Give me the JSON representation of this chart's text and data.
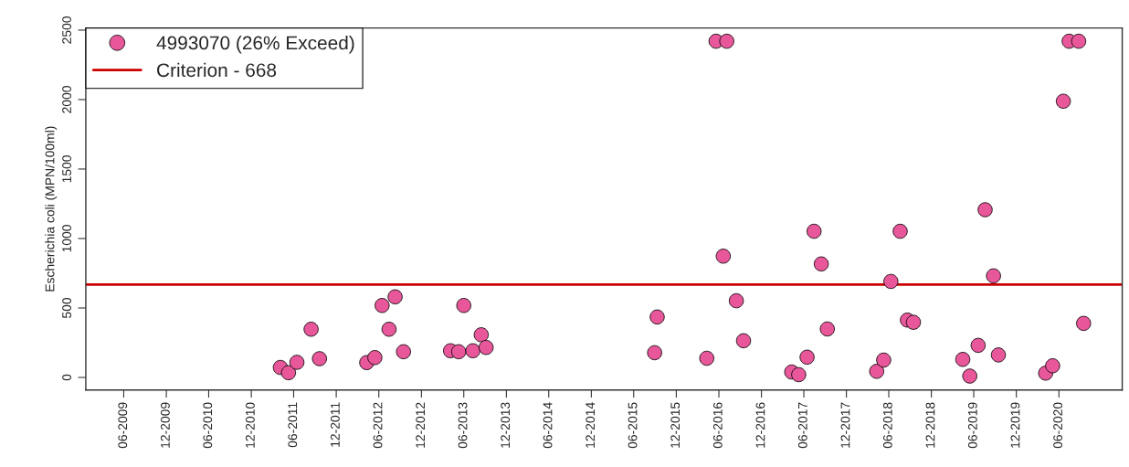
{
  "chart_data": {
    "type": "scatter",
    "ylabel": "Escherichia coli (MPN/100ml)",
    "series": [
      {
        "name": "4993070 (26% Exceed)",
        "color": "#e8579a",
        "x": [
          "2011-04-05",
          "2011-05-10",
          "2011-06-15",
          "2011-08-15",
          "2011-09-20",
          "2012-04-10",
          "2012-05-15",
          "2012-06-15",
          "2012-07-15",
          "2012-08-10",
          "2012-09-15",
          "2013-04-05",
          "2013-05-10",
          "2013-06-01",
          "2013-07-10",
          "2013-08-15",
          "2013-09-05",
          "2015-08-30",
          "2015-09-10",
          "2016-04-10",
          "2016-05-20",
          "2016-06-20",
          "2016-07-05",
          "2016-08-15",
          "2016-09-15",
          "2017-04-10",
          "2017-05-10",
          "2017-06-15",
          "2017-07-15",
          "2017-08-15",
          "2017-09-10",
          "2018-04-10",
          "2018-05-10",
          "2018-06-10",
          "2018-07-20",
          "2018-08-20",
          "2018-09-15",
          "2019-04-15",
          "2019-05-15",
          "2019-06-20",
          "2019-07-20",
          "2019-08-25",
          "2019-09-15",
          "2020-04-05",
          "2020-05-05",
          "2020-06-20",
          "2020-07-15",
          "2020-08-25",
          "2020-09-15"
        ],
        "values": [
          72,
          34,
          109,
          347,
          135,
          107,
          143,
          518,
          347,
          580,
          185,
          192,
          185,
          518,
          192,
          307,
          216,
          178,
          435,
          138,
          2420,
          873,
          2420,
          552,
          264,
          39,
          20,
          146,
          1052,
          817,
          349,
          44,
          125,
          691,
          1052,
          413,
          397,
          130,
          10,
          231,
          1207,
          731,
          162,
          31,
          84,
          1988,
          2420,
          2420,
          389
        ]
      }
    ],
    "marker": "circle",
    "ref_lines": [
      {
        "axis": "y",
        "value": 668,
        "label": "Criterion - 668",
        "color": "#cc0000"
      }
    ],
    "xlim": [
      "2008-12-20",
      "2021-02-28"
    ],
    "xticks": [
      {
        "value": "2009-06-01",
        "label": "06-2009"
      },
      {
        "value": "2009-12-01",
        "label": "12-2009"
      },
      {
        "value": "2010-06-01",
        "label": "06-2010"
      },
      {
        "value": "2010-12-01",
        "label": "12-2010"
      },
      {
        "value": "2011-06-01",
        "label": "06-2011"
      },
      {
        "value": "2011-12-01",
        "label": "12-2011"
      },
      {
        "value": "2012-06-01",
        "label": "06-2012"
      },
      {
        "value": "2012-12-01",
        "label": "12-2012"
      },
      {
        "value": "2013-06-01",
        "label": "06-2013"
      },
      {
        "value": "2013-12-01",
        "label": "12-2013"
      },
      {
        "value": "2014-06-01",
        "label": "06-2014"
      },
      {
        "value": "2014-12-01",
        "label": "12-2014"
      },
      {
        "value": "2015-06-01",
        "label": "06-2015"
      },
      {
        "value": "2015-12-01",
        "label": "12-2015"
      },
      {
        "value": "2016-06-01",
        "label": "06-2016"
      },
      {
        "value": "2016-12-01",
        "label": "12-2016"
      },
      {
        "value": "2017-06-01",
        "label": "06-2017"
      },
      {
        "value": "2017-12-01",
        "label": "12-2017"
      },
      {
        "value": "2018-06-01",
        "label": "06-2018"
      },
      {
        "value": "2018-12-01",
        "label": "12-2018"
      },
      {
        "value": "2019-06-01",
        "label": "06-2019"
      },
      {
        "value": "2019-12-01",
        "label": "12-2019"
      },
      {
        "value": "2020-06-01",
        "label": "06-2020"
      }
    ],
    "ylim": [
      -90,
      2515
    ],
    "yticks": [
      0,
      500,
      1000,
      1500,
      2000,
      2500
    ],
    "grid": false,
    "legend": "top left"
  }
}
